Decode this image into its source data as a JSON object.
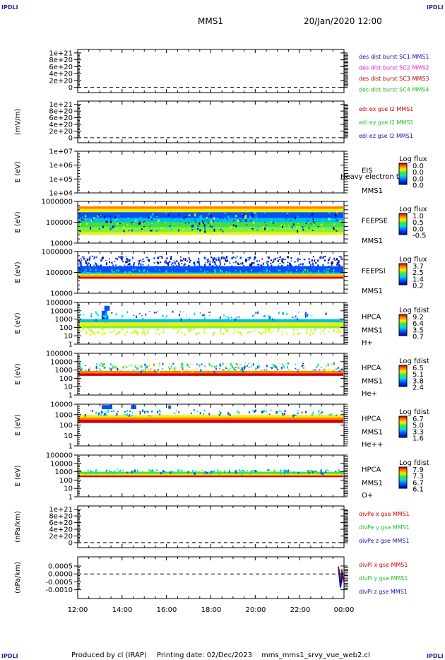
{
  "header": {
    "corner_label": "IPDLI",
    "mission": "MMS1",
    "date": "20/Jan/2020 12:00"
  },
  "x_axis_labels": [
    "12:00",
    "14:00",
    "16:00",
    "18:00",
    "20:00",
    "22:00",
    "00:00"
  ],
  "footer": {
    "produced": "Produced by cl (IRAP)",
    "printing": "Printing date: 02/Dec/2023",
    "file": "mms_mms1_srvy_vue_web2.cl"
  },
  "colors": {
    "red": "#d00000",
    "magenta": "#e020e0",
    "green": "#20c020",
    "blue": "#1010b0",
    "crimson": "#c00000"
  },
  "chart_data": [
    {
      "type": "line",
      "ylabel": "",
      "yticks": [
        "1e+21",
        "8e+20",
        "6e+20",
        "4e+20",
        "2e+20",
        "0"
      ],
      "legend": [
        {
          "text": "des dist burst SC1 MMS1",
          "color": "#1010b0"
        },
        {
          "text": "des dist burst SC2 MMS2",
          "color": "#e020e0"
        },
        {
          "text": "des dist burst SC3 MMS3",
          "color": "#c00000"
        },
        {
          "text": "des dist burst SC4 MMS4",
          "color": "#20c020"
        }
      ]
    },
    {
      "type": "line",
      "ylabel": "(mV/m)",
      "yticks": [
        "1e+21",
        "8e+20",
        "6e+20",
        "4e+20",
        "2e+20",
        "0"
      ],
      "legend": [
        {
          "text": "edi ex gse l2 MMS1",
          "color": "#d00000"
        },
        {
          "text": "edi ey gse l2 MMS1",
          "color": "#20c020"
        },
        {
          "text": "edi ez gse l2 MMS1",
          "color": "#1010b0"
        }
      ]
    },
    {
      "type": "heatmap",
      "ylabel": "E (eV)",
      "yticks": [
        "1e+07",
        "1e+06",
        "1e+05",
        "1e+04"
      ],
      "instrument": [
        "EIS",
        "MMS1"
      ],
      "overlay": "Heavy electron to",
      "cbar_title": "Log flux",
      "cbar_values": [
        "0.0",
        "0.0",
        "0.0",
        "0.0"
      ]
    },
    {
      "type": "heatmap",
      "ylabel": "E (eV)",
      "yticks": [
        "1000000",
        "100000",
        "10000"
      ],
      "instrument": [
        "FEEPSE",
        "MMS1"
      ],
      "cbar_title": "Log flux",
      "cbar_values": [
        "1.0",
        "0.5",
        "0.0",
        "-0.5"
      ]
    },
    {
      "type": "heatmap",
      "ylabel": "E (eV)",
      "yticks": [
        "1000000",
        "100000",
        "10000"
      ],
      "instrument": [
        "FEEPSI",
        "MMS1"
      ],
      "cbar_title": "Log flux",
      "cbar_values": [
        "3.7",
        "2.5",
        "1.4",
        "0.2"
      ]
    },
    {
      "type": "heatmap",
      "ylabel": "E (eV)",
      "yticks": [
        "100000",
        "10000",
        "1000",
        "100",
        "10",
        "1"
      ],
      "instrument": [
        "HPCA",
        "MMS1",
        "H+"
      ],
      "cbar_title": "Log fdist",
      "cbar_values": [
        "9.2",
        "6.4",
        "3.5",
        "0.7"
      ]
    },
    {
      "type": "heatmap",
      "ylabel": "E (eV)",
      "yticks": [
        "100000",
        "10000",
        "1000",
        "100",
        "10",
        "1"
      ],
      "instrument": [
        "HPCA",
        "MMS1",
        "He+"
      ],
      "cbar_title": "Log fdist",
      "cbar_values": [
        "6.5",
        "5.1",
        "3.8",
        "2.4"
      ]
    },
    {
      "type": "heatmap",
      "ylabel": "E (eV)",
      "yticks": [
        "10000",
        "1000",
        "100",
        "10",
        "1"
      ],
      "instrument": [
        "HPCA",
        "MMS1",
        "He++"
      ],
      "cbar_title": "Log fdist",
      "cbar_values": [
        "6.7",
        "5.0",
        "3.3",
        "1.6"
      ]
    },
    {
      "type": "heatmap",
      "ylabel": "E (eV)",
      "yticks": [
        "100000",
        "10000",
        "1000",
        "100",
        "10",
        "1"
      ],
      "instrument": [
        "HPCA",
        "MMS1",
        "O+"
      ],
      "cbar_title": "Log fdist",
      "cbar_values": [
        "7.9",
        "7.3",
        "6.7",
        "6.1"
      ]
    },
    {
      "type": "line",
      "ylabel": "(nPa/km)",
      "yticks": [
        "1e+21",
        "8e+20",
        "6e+20",
        "4e+20",
        "2e+20",
        "0"
      ],
      "legend": [
        {
          "text": "divPe x gse MMS1",
          "color": "#d00000"
        },
        {
          "text": "divPe y gse MMS1",
          "color": "#20c020"
        },
        {
          "text": "divPe z gse MMS1",
          "color": "#1010b0"
        }
      ]
    },
    {
      "type": "line",
      "ylabel": "(nPa/km)",
      "yticks": [
        "0.0005",
        "0.0000",
        "-0.0005",
        "-0.0010"
      ],
      "legend": [
        {
          "text": "divPi x gse MMS1",
          "color": "#d00000"
        },
        {
          "text": "divPi y gse MMS1",
          "color": "#20c020"
        },
        {
          "text": "divPi z gse MMS1",
          "color": "#1010b0"
        }
      ]
    }
  ]
}
